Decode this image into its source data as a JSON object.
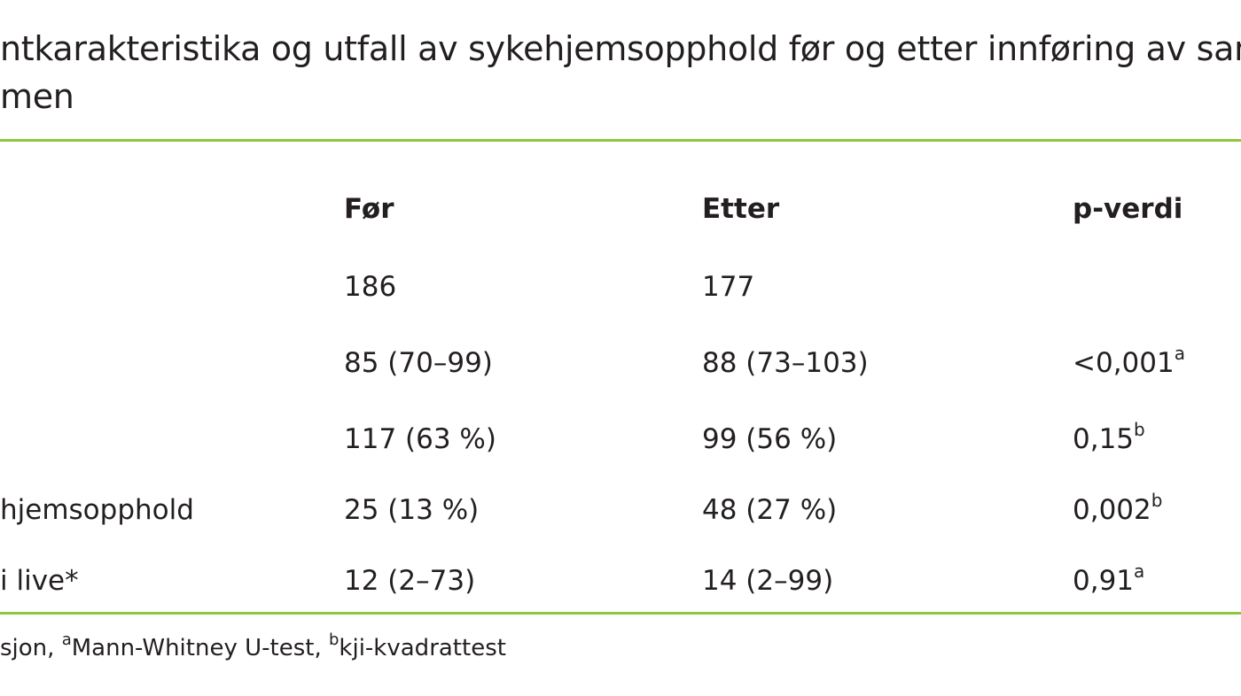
{
  "title": {
    "line1": "ntkarakteristika og utfall av sykehjemsopphold før og etter innføring av sam-",
    "line2": "men"
  },
  "colors": {
    "rule": "#8dc63f",
    "text": "#231f20"
  },
  "table": {
    "headers": {
      "for": "Før",
      "etter": "Etter",
      "p": "p-verdi"
    },
    "rows": [
      {
        "label": "",
        "for": "186",
        "etter": "177",
        "p": "",
        "p_sup": ""
      },
      {
        "label": "",
        "for": "85 (70–99)",
        "etter": "88 (73–103)",
        "p": "<0,001",
        "p_sup": "a"
      },
      {
        "label": "",
        "for": "117 (63 %)",
        "etter": "99 (56 %)",
        "p": "0,15",
        "p_sup": "b"
      },
      {
        "label": "hjemsopphold",
        "for": "25 (13 %)",
        "etter": "48 (27 %)",
        "p": "0,002",
        "p_sup": "b"
      },
      {
        "label": "i live*",
        "for": "12 (2–73)",
        "etter": "14 (2–99)",
        "p": "0,91",
        "p_sup": "a"
      }
    ]
  },
  "footnote": {
    "part1": "sjon, ",
    "sup_a": "a",
    "part2": "Mann-Whitney U-test, ",
    "sup_b": "b",
    "part3": "kji-kvadrattest"
  }
}
